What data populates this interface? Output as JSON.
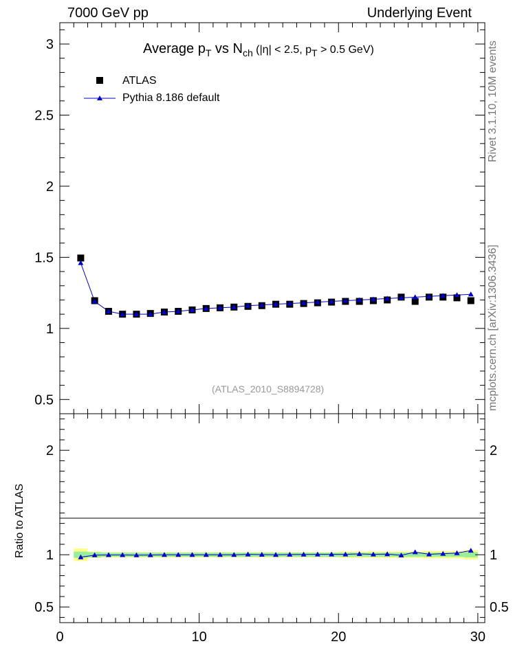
{
  "header": {
    "left": "7000 GeV pp",
    "right": "Underlying Event"
  },
  "side_labels": {
    "rivet": "Rivet 3.1.10,  10M events",
    "mcplots": "mcplots.cern.ch [arXiv:1306.3436]"
  },
  "colors": {
    "data": "#000000",
    "mc": "#0000cc",
    "band_inner": "#99ee99",
    "band_outer": "#ffff88",
    "reference_text": "#999999"
  },
  "chart_data": {
    "type": "scatter",
    "title": "Average p_T vs N_ch (|η| < 2.5, p_T > 0.5 GeV)",
    "title_parts": {
      "p1": "Average p",
      "s1": "T",
      "p2": " vs N",
      "s2": "ch",
      "p3": " (|η| < 2.5, p",
      "s3": "T",
      "p4": " > 0.5 GeV)"
    },
    "reference": "(ATLAS_2010_S8894728)",
    "xlim": [
      0,
      30.5
    ],
    "ylim": [
      0.4,
      3.15
    ],
    "ratio_ylim": [
      0.35,
      2.35
    ],
    "ratio_ylabel": "Ratio to ATLAS",
    "xticks": [
      0,
      10,
      20,
      30
    ],
    "yticks": [
      0.5,
      1,
      1.5,
      2,
      2.5,
      3
    ],
    "yticks_labels": [
      "0.5",
      "1",
      "1.5",
      "2",
      "2.5",
      "3"
    ],
    "ratio_yticks": [
      0.5,
      1,
      2
    ],
    "ratio_yticks_labels": [
      "0.5",
      "1",
      "2"
    ],
    "legend": {
      "position": "top-left",
      "entries": [
        "ATLAS",
        "Pythia 8.186 default"
      ]
    },
    "x": [
      1.5,
      2.5,
      3.5,
      4.5,
      5.5,
      6.5,
      7.5,
      8.5,
      9.5,
      10.5,
      11.5,
      12.5,
      13.5,
      14.5,
      15.5,
      16.5,
      17.5,
      18.5,
      19.5,
      20.5,
      21.5,
      22.5,
      23.5,
      24.5,
      25.5,
      26.5,
      27.5,
      28.5,
      29.5
    ],
    "series": [
      {
        "name": "ATLAS",
        "marker": "square",
        "values": [
          1.495,
          1.195,
          1.12,
          1.1,
          1.1,
          1.105,
          1.115,
          1.12,
          1.13,
          1.14,
          1.145,
          1.15,
          1.155,
          1.16,
          1.17,
          1.17,
          1.175,
          1.18,
          1.185,
          1.19,
          1.19,
          1.195,
          1.2,
          1.22,
          1.19,
          1.22,
          1.22,
          1.215,
          1.195
        ]
      },
      {
        "name": "Pythia 8.186 default",
        "marker": "triangle",
        "values": [
          1.46,
          1.19,
          1.12,
          1.1,
          1.1,
          1.1,
          1.115,
          1.12,
          1.13,
          1.14,
          1.145,
          1.15,
          1.16,
          1.165,
          1.17,
          1.175,
          1.18,
          1.185,
          1.19,
          1.195,
          1.2,
          1.205,
          1.21,
          1.215,
          1.22,
          1.225,
          1.23,
          1.235,
          1.24
        ]
      }
    ],
    "ratio_series": {
      "name": "Pythia 8.186 default / ATLAS",
      "values": [
        0.977,
        0.996,
        0.998,
        0.998,
        0.996,
        0.997,
        1.0,
        1.0,
        1.0,
        1.0,
        1.0,
        1.0,
        1.004,
        1.001,
        1.0,
        1.002,
        1.003,
        1.004,
        1.004,
        1.004,
        1.008,
        1.004,
        1.006,
        0.995,
        1.025,
        1.005,
        1.01,
        1.016,
        1.04
      ]
    },
    "ratio_band": {
      "inner_err": [
        0.03,
        0.025,
        0.02,
        0.02,
        0.02,
        0.02,
        0.02,
        0.02,
        0.02,
        0.02,
        0.02,
        0.02,
        0.02,
        0.02,
        0.02,
        0.02,
        0.02,
        0.02,
        0.02,
        0.02,
        0.02,
        0.02,
        0.02,
        0.02,
        0.02,
        0.02,
        0.02,
        0.02,
        0.025
      ],
      "outer_err": [
        0.06,
        0.03,
        0.025,
        0.025,
        0.025,
        0.025,
        0.025,
        0.025,
        0.025,
        0.025,
        0.025,
        0.025,
        0.025,
        0.025,
        0.025,
        0.025,
        0.025,
        0.025,
        0.025,
        0.03,
        0.03,
        0.03,
        0.03,
        0.03,
        0.03,
        0.035,
        0.035,
        0.035,
        0.045
      ]
    }
  }
}
